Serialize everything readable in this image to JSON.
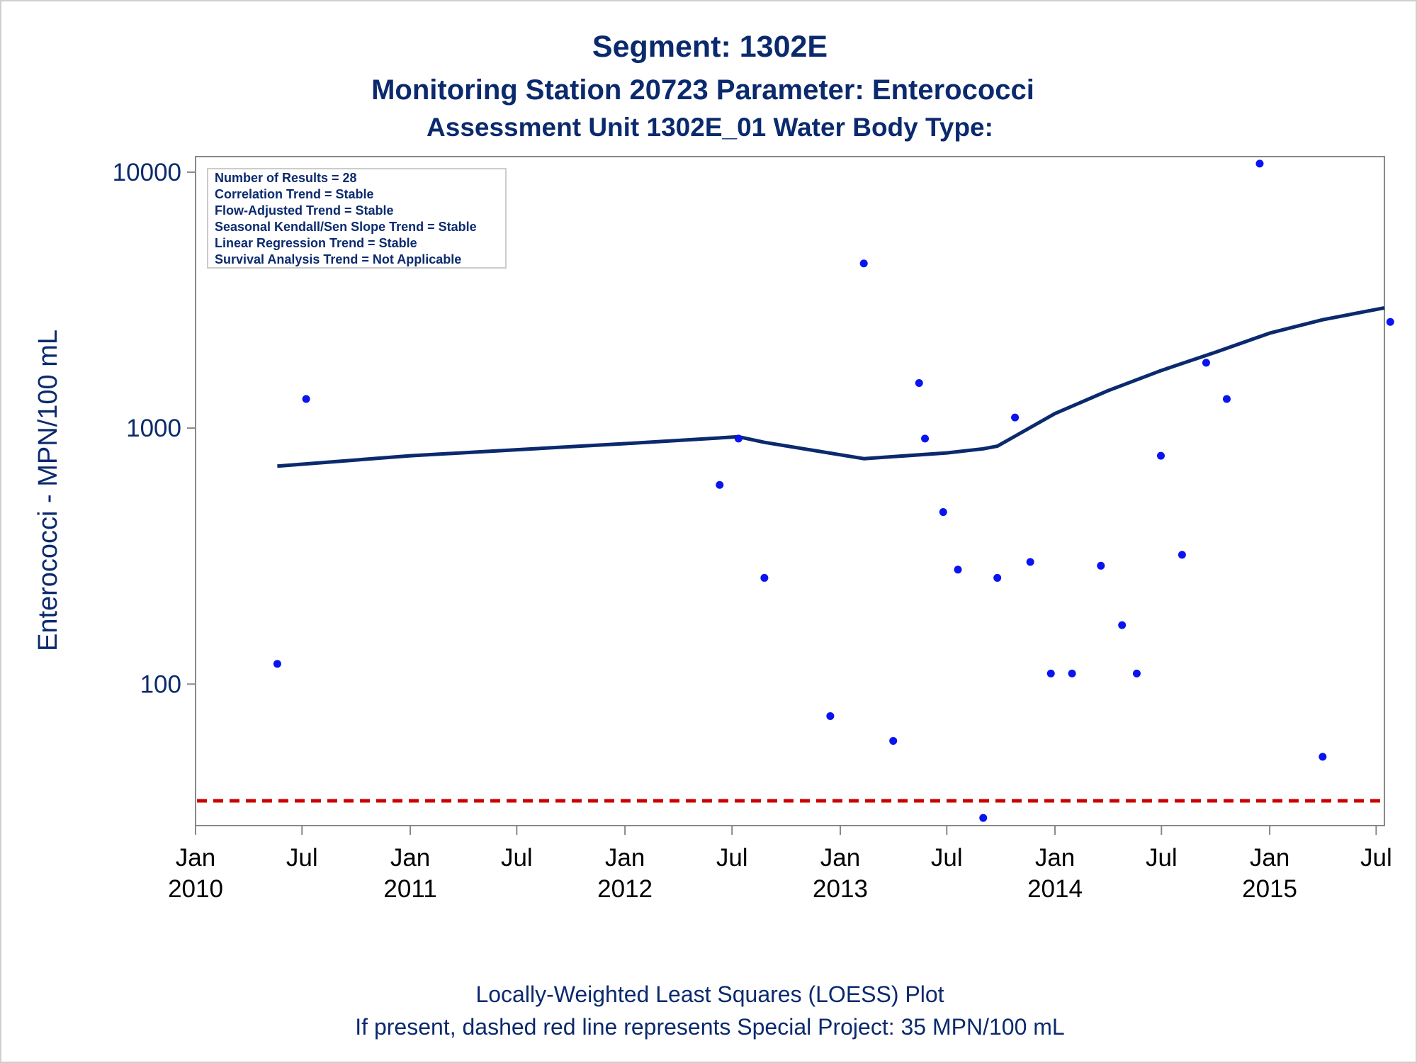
{
  "titles": {
    "line1": "Segment: 1302E",
    "line2": "Monitoring Station 20723 Parameter: Enterococci",
    "line3": "Assessment Unit 1302E_01   Water Body Type:"
  },
  "stats_box": [
    "Number of Results = 28",
    "Correlation Trend = Stable",
    "Flow-Adjusted Trend = Stable",
    "Seasonal Kendall/Sen Slope Trend = Stable",
    "Linear Regression Trend = Stable",
    "Survival Analysis Trend = Not Applicable"
  ],
  "footnotes": {
    "line1": "Locally-Weighted Least Squares (LOESS) Plot",
    "line2": "If present, dashed red line represents Special Project: 35 MPN/100 mL"
  },
  "colors": {
    "points": "#0a14f0",
    "loess": "#0b2a6e",
    "reference": "#cc0000",
    "axis": "#888888",
    "text": "#0b2a6e"
  },
  "chart_data": {
    "type": "scatter",
    "ylabel": "Enterococci - MPN/100 mL",
    "xlabel": "",
    "y_scale": "log",
    "ylim": [
      28,
      11500
    ],
    "xlim": [
      "2010-01-01",
      "2015-07-15"
    ],
    "y_ticks": [
      {
        "value": 100,
        "label": "100"
      },
      {
        "value": 1000,
        "label": "1000"
      },
      {
        "value": 10000,
        "label": "10000"
      }
    ],
    "x_ticks": [
      {
        "date": "2010-01-01",
        "label1": "Jan",
        "label2": "2010"
      },
      {
        "date": "2010-07-01",
        "label1": "Jul",
        "label2": ""
      },
      {
        "date": "2011-01-01",
        "label1": "Jan",
        "label2": "2011"
      },
      {
        "date": "2011-07-01",
        "label1": "Jul",
        "label2": ""
      },
      {
        "date": "2012-01-01",
        "label1": "Jan",
        "label2": "2012"
      },
      {
        "date": "2012-07-01",
        "label1": "Jul",
        "label2": ""
      },
      {
        "date": "2013-01-01",
        "label1": "Jan",
        "label2": "2013"
      },
      {
        "date": "2013-07-01",
        "label1": "Jul",
        "label2": ""
      },
      {
        "date": "2014-01-01",
        "label1": "Jan",
        "label2": "2014"
      },
      {
        "date": "2014-07-01",
        "label1": "Jul",
        "label2": ""
      },
      {
        "date": "2015-01-01",
        "label1": "Jan",
        "label2": "2015"
      },
      {
        "date": "2015-07-01",
        "label1": "Jul",
        "label2": ""
      }
    ],
    "grid": false,
    "reference_line": {
      "value": 35,
      "style": "dashed"
    },
    "points": [
      {
        "date": "2010-05-20",
        "value": 120
      },
      {
        "date": "2010-07-08",
        "value": 1300
      },
      {
        "date": "2012-06-10",
        "value": 600
      },
      {
        "date": "2012-07-12",
        "value": 910
      },
      {
        "date": "2012-08-25",
        "value": 260
      },
      {
        "date": "2012-12-15",
        "value": 75
      },
      {
        "date": "2013-02-10",
        "value": 4400
      },
      {
        "date": "2013-04-01",
        "value": 60
      },
      {
        "date": "2013-05-15",
        "value": 1500
      },
      {
        "date": "2013-05-25",
        "value": 910
      },
      {
        "date": "2013-06-25",
        "value": 470
      },
      {
        "date": "2013-07-20",
        "value": 280
      },
      {
        "date": "2013-09-01",
        "value": 30
      },
      {
        "date": "2013-09-25",
        "value": 260
      },
      {
        "date": "2013-10-25",
        "value": 1100
      },
      {
        "date": "2013-11-20",
        "value": 300
      },
      {
        "date": "2013-12-25",
        "value": 110
      },
      {
        "date": "2014-01-30",
        "value": 110
      },
      {
        "date": "2014-03-20",
        "value": 290
      },
      {
        "date": "2014-04-25",
        "value": 170
      },
      {
        "date": "2014-05-20",
        "value": 110
      },
      {
        "date": "2014-06-30",
        "value": 780
      },
      {
        "date": "2014-08-05",
        "value": 320
      },
      {
        "date": "2014-09-15",
        "value": 1800
      },
      {
        "date": "2014-10-20",
        "value": 1300
      },
      {
        "date": "2014-12-15",
        "value": 10800
      },
      {
        "date": "2015-04-01",
        "value": 52
      },
      {
        "date": "2015-07-25",
        "value": 2600
      }
    ],
    "loess": [
      {
        "date": "2010-05-20",
        "value": 710
      },
      {
        "date": "2011-01-01",
        "value": 780
      },
      {
        "date": "2012-01-01",
        "value": 870
      },
      {
        "date": "2012-07-12",
        "value": 925
      },
      {
        "date": "2012-08-25",
        "value": 880
      },
      {
        "date": "2013-02-10",
        "value": 760
      },
      {
        "date": "2013-07-01",
        "value": 800
      },
      {
        "date": "2013-09-01",
        "value": 830
      },
      {
        "date": "2013-09-25",
        "value": 850
      },
      {
        "date": "2013-10-25",
        "value": 930
      },
      {
        "date": "2014-01-01",
        "value": 1140
      },
      {
        "date": "2014-04-01",
        "value": 1400
      },
      {
        "date": "2014-07-01",
        "value": 1680
      },
      {
        "date": "2014-10-01",
        "value": 1980
      },
      {
        "date": "2015-01-01",
        "value": 2350
      },
      {
        "date": "2015-04-01",
        "value": 2650
      },
      {
        "date": "2015-07-15",
        "value": 2950
      }
    ]
  }
}
